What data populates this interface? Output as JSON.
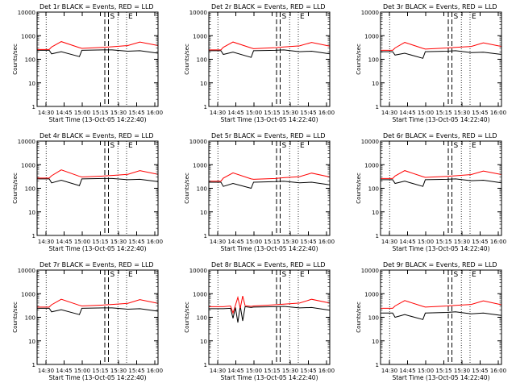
{
  "figure": {
    "ylabel": "Counts/sec",
    "xlabel": "Start Time (13-Oct-05 14:22:40)",
    "y_ticks": [
      "1",
      "10",
      "100",
      "1000",
      "10000"
    ],
    "x_ticks": [
      "14:30",
      "14:45",
      "15:00",
      "15:15",
      "15:30",
      "15:45",
      "16:00"
    ]
  },
  "colors": {
    "events": "#000000",
    "lld": "#ff0000",
    "axes": "#000000",
    "background": "#ffffff"
  },
  "chart_data": [
    {
      "type": "line",
      "title": "Det 1r BLACK = Events, RED = LLD",
      "markers": [
        "S",
        "E"
      ],
      "xlabel": "Start Time (13-Oct-05 14:22:40)",
      "ylabel": "Counts/sec",
      "ylim": [
        1,
        10000
      ],
      "y_scale": "log",
      "x_range_min_after_start": [
        0,
        100
      ],
      "series": [
        {
          "name": "Events",
          "x": [
            0,
            10,
            12,
            20,
            35,
            37,
            55,
            62,
            75,
            85,
            100
          ],
          "values": [
            240,
            240,
            170,
            210,
            130,
            240,
            250,
            250,
            220,
            230,
            180
          ]
        },
        {
          "name": "LLD",
          "x": [
            0,
            10,
            12,
            20,
            35,
            37,
            55,
            62,
            75,
            85,
            100
          ],
          "values": [
            260,
            260,
            330,
            560,
            310,
            290,
            320,
            340,
            380,
            540,
            380
          ]
        }
      ]
    },
    {
      "type": "line",
      "title": "Det 2r BLACK = Events, RED = LLD",
      "markers": [
        "S",
        "E"
      ],
      "xlabel": "Start Time (13-Oct-05 14:22:40)",
      "ylabel": "Counts/sec",
      "ylim": [
        1,
        10000
      ],
      "y_scale": "log",
      "x_range_min_after_start": [
        0,
        100
      ],
      "series": [
        {
          "name": "Events",
          "x": [
            0,
            10,
            12,
            20,
            35,
            37,
            55,
            62,
            75,
            85,
            100
          ],
          "values": [
            230,
            230,
            160,
            200,
            120,
            230,
            240,
            250,
            210,
            220,
            170
          ]
        },
        {
          "name": "LLD",
          "x": [
            0,
            10,
            12,
            20,
            35,
            37,
            55,
            62,
            75,
            85,
            100
          ],
          "values": [
            250,
            250,
            320,
            540,
            300,
            280,
            310,
            330,
            370,
            520,
            360
          ]
        }
      ]
    },
    {
      "type": "line",
      "title": "Det 3r BLACK = Events, RED = LLD",
      "markers": [
        "S",
        "E"
      ],
      "xlabel": "Start Time (13-Oct-05 14:22:40)",
      "ylabel": "Counts/sec",
      "ylim": [
        1,
        10000
      ],
      "y_scale": "log",
      "x_range_min_after_start": [
        0,
        100
      ],
      "series": [
        {
          "name": "Events",
          "x": [
            0,
            10,
            12,
            20,
            35,
            37,
            55,
            62,
            75,
            85,
            100
          ],
          "values": [
            210,
            210,
            150,
            180,
            110,
            210,
            220,
            230,
            190,
            200,
            160
          ]
        },
        {
          "name": "LLD",
          "x": [
            0,
            10,
            12,
            20,
            35,
            37,
            55,
            62,
            75,
            85,
            100
          ],
          "values": [
            240,
            240,
            300,
            520,
            290,
            270,
            300,
            320,
            350,
            500,
            350
          ]
        }
      ]
    },
    {
      "type": "line",
      "title": "Det 4r BLACK = Events, RED = LLD",
      "markers": [
        "S",
        "E"
      ],
      "xlabel": "Start Time (13-Oct-05 14:22:40)",
      "ylabel": "Counts/sec",
      "ylim": [
        1,
        10000
      ],
      "y_scale": "log",
      "x_range_min_after_start": [
        0,
        100
      ],
      "series": [
        {
          "name": "Events",
          "x": [
            0,
            10,
            12,
            20,
            35,
            37,
            55,
            62,
            75,
            85,
            100
          ],
          "values": [
            250,
            250,
            170,
            220,
            130,
            250,
            260,
            260,
            230,
            240,
            190
          ]
        },
        {
          "name": "LLD",
          "x": [
            0,
            10,
            12,
            20,
            35,
            37,
            55,
            62,
            75,
            85,
            100
          ],
          "values": [
            270,
            270,
            340,
            600,
            320,
            300,
            330,
            350,
            390,
            560,
            390
          ]
        }
      ]
    },
    {
      "type": "line",
      "title": "Det 5r BLACK = Events, RED = LLD",
      "markers": [
        "S",
        "E"
      ],
      "xlabel": "Start Time (13-Oct-05 14:22:40)",
      "ylabel": "Counts/sec",
      "ylim": [
        1,
        10000
      ],
      "y_scale": "log",
      "x_range_min_after_start": [
        0,
        100
      ],
      "series": [
        {
          "name": "Events",
          "x": [
            0,
            10,
            12,
            20,
            35,
            37,
            55,
            62,
            75,
            85,
            100
          ],
          "values": [
            180,
            180,
            120,
            160,
            100,
            180,
            190,
            200,
            170,
            180,
            140
          ]
        },
        {
          "name": "LLD",
          "x": [
            0,
            10,
            12,
            20,
            35,
            37,
            55,
            62,
            75,
            85,
            100
          ],
          "values": [
            200,
            200,
            270,
            450,
            250,
            240,
            260,
            280,
            310,
            440,
            300
          ]
        }
      ]
    },
    {
      "type": "line",
      "title": "Det 6r BLACK = Events, RED = LLD",
      "markers": [
        "S",
        "E"
      ],
      "xlabel": "Start Time (13-Oct-05 14:22:40)",
      "ylabel": "Counts/sec",
      "ylim": [
        1,
        10000
      ],
      "y_scale": "log",
      "x_range_min_after_start": [
        0,
        100
      ],
      "series": [
        {
          "name": "Events",
          "x": [
            0,
            10,
            12,
            20,
            35,
            37,
            55,
            62,
            75,
            85,
            100
          ],
          "values": [
            230,
            230,
            160,
            200,
            120,
            230,
            240,
            250,
            210,
            220,
            170
          ]
        },
        {
          "name": "LLD",
          "x": [
            0,
            10,
            12,
            20,
            35,
            37,
            55,
            62,
            75,
            85,
            100
          ],
          "values": [
            260,
            260,
            330,
            560,
            310,
            290,
            320,
            340,
            380,
            540,
            380
          ]
        }
      ]
    },
    {
      "type": "line",
      "title": "Det 7r BLACK = Events, RED = LLD",
      "markers": [
        "S",
        "E"
      ],
      "xlabel": "Start Time (13-Oct-05 14:22:40)",
      "ylabel": "Counts/sec",
      "ylim": [
        1,
        10000
      ],
      "y_scale": "log",
      "x_range_min_after_start": [
        0,
        100
      ],
      "series": [
        {
          "name": "Events",
          "x": [
            0,
            10,
            12,
            20,
            35,
            37,
            55,
            62,
            75,
            85,
            100
          ],
          "values": [
            240,
            240,
            170,
            210,
            130,
            240,
            250,
            250,
            220,
            230,
            180
          ]
        },
        {
          "name": "LLD",
          "x": [
            0,
            10,
            12,
            20,
            35,
            37,
            55,
            62,
            75,
            85,
            100
          ],
          "values": [
            270,
            270,
            340,
            580,
            320,
            300,
            330,
            350,
            390,
            560,
            390
          ]
        }
      ]
    },
    {
      "type": "line",
      "title": "Det 8r BLACK = Events, RED = LLD",
      "markers": [
        "S",
        "E"
      ],
      "xlabel": "Start Time (13-Oct-05 14:22:40)",
      "ylabel": "Counts/sec",
      "ylim": [
        1,
        10000
      ],
      "y_scale": "log",
      "x_range_min_after_start": [
        0,
        100
      ],
      "series": [
        {
          "name": "Events",
          "x": [
            0,
            12,
            18,
            20,
            22,
            24,
            26,
            28,
            30,
            35,
            37,
            55,
            62,
            75,
            85,
            100
          ],
          "values": [
            230,
            230,
            240,
            90,
            260,
            60,
            300,
            70,
            280,
            260,
            270,
            280,
            290,
            250,
            260,
            200
          ]
        },
        {
          "name": "LLD",
          "x": [
            0,
            12,
            18,
            20,
            22,
            24,
            26,
            28,
            30,
            35,
            37,
            55,
            62,
            75,
            85,
            100
          ],
          "values": [
            280,
            280,
            300,
            150,
            320,
            700,
            240,
            800,
            310,
            290,
            300,
            340,
            360,
            400,
            580,
            400
          ]
        }
      ]
    },
    {
      "type": "line",
      "title": "Det 9r BLACK = Events, RED = LLD",
      "markers": [
        "S",
        "E"
      ],
      "xlabel": "Start Time (13-Oct-05 14:22:40)",
      "ylabel": "Counts/sec",
      "ylim": [
        1,
        10000
      ],
      "y_scale": "log",
      "x_range_min_after_start": [
        0,
        100
      ],
      "series": [
        {
          "name": "Events",
          "x": [
            0,
            10,
            12,
            20,
            35,
            37,
            55,
            62,
            75,
            85,
            100
          ],
          "values": [
            150,
            150,
            100,
            130,
            80,
            150,
            160,
            170,
            140,
            150,
            120
          ]
        },
        {
          "name": "LLD",
          "x": [
            0,
            10,
            12,
            20,
            35,
            37,
            55,
            62,
            75,
            85,
            100
          ],
          "values": [
            240,
            240,
            300,
            510,
            290,
            270,
            300,
            320,
            350,
            500,
            340
          ]
        }
      ]
    }
  ]
}
